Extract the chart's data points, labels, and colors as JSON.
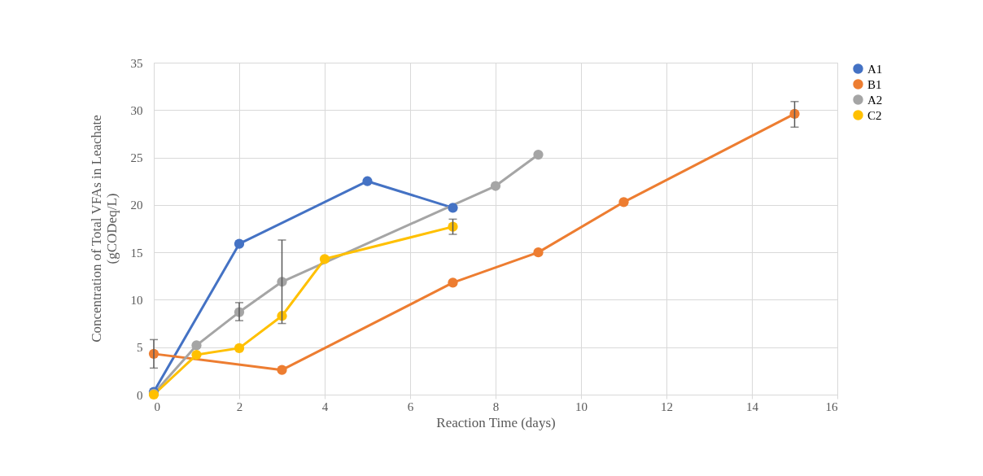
{
  "chart_data": {
    "type": "line",
    "xlabel": "Reaction Time (days)",
    "ylabel": "Concentration of Total VFAs in Leachate\n(gCODeq/L)",
    "xlim": [
      0,
      16
    ],
    "xticks": [
      0,
      2,
      4,
      6,
      8,
      10,
      12,
      14,
      16
    ],
    "ylim": [
      0,
      35
    ],
    "yticks": [
      0,
      5,
      10,
      15,
      20,
      25,
      30,
      35
    ],
    "grid": true,
    "legend": "right",
    "marker": "circle",
    "line_style": "solid",
    "series": [
      {
        "name": "A1",
        "color": "#4472c4",
        "x": [
          0,
          2,
          5,
          7
        ],
        "values": [
          0.3,
          15.9,
          22.5,
          19.7
        ]
      },
      {
        "name": "B1",
        "color": "#ed7d31",
        "x": [
          0,
          3,
          7,
          9,
          11,
          15
        ],
        "values": [
          4.3,
          2.6,
          11.8,
          15.0,
          20.3,
          29.6
        ],
        "errors": [
          [
            2.8,
            5.8
          ],
          null,
          null,
          null,
          null,
          [
            28.2,
            30.9
          ]
        ]
      },
      {
        "name": "A2",
        "color": "#a5a5a5",
        "x": [
          0,
          1,
          2,
          3,
          8,
          9
        ],
        "values": [
          0.1,
          5.2,
          8.7,
          11.9,
          22.0,
          25.3
        ],
        "errors": [
          null,
          null,
          [
            7.8,
            9.7
          ],
          [
            7.5,
            16.3
          ],
          null,
          null
        ]
      },
      {
        "name": "C2",
        "color": "#ffc000",
        "x": [
          0,
          1,
          2,
          3,
          4,
          7
        ],
        "values": [
          0.0,
          4.2,
          4.9,
          8.3,
          14.3,
          17.7
        ],
        "errors": [
          null,
          null,
          null,
          null,
          null,
          [
            16.9,
            18.5
          ]
        ]
      }
    ]
  }
}
